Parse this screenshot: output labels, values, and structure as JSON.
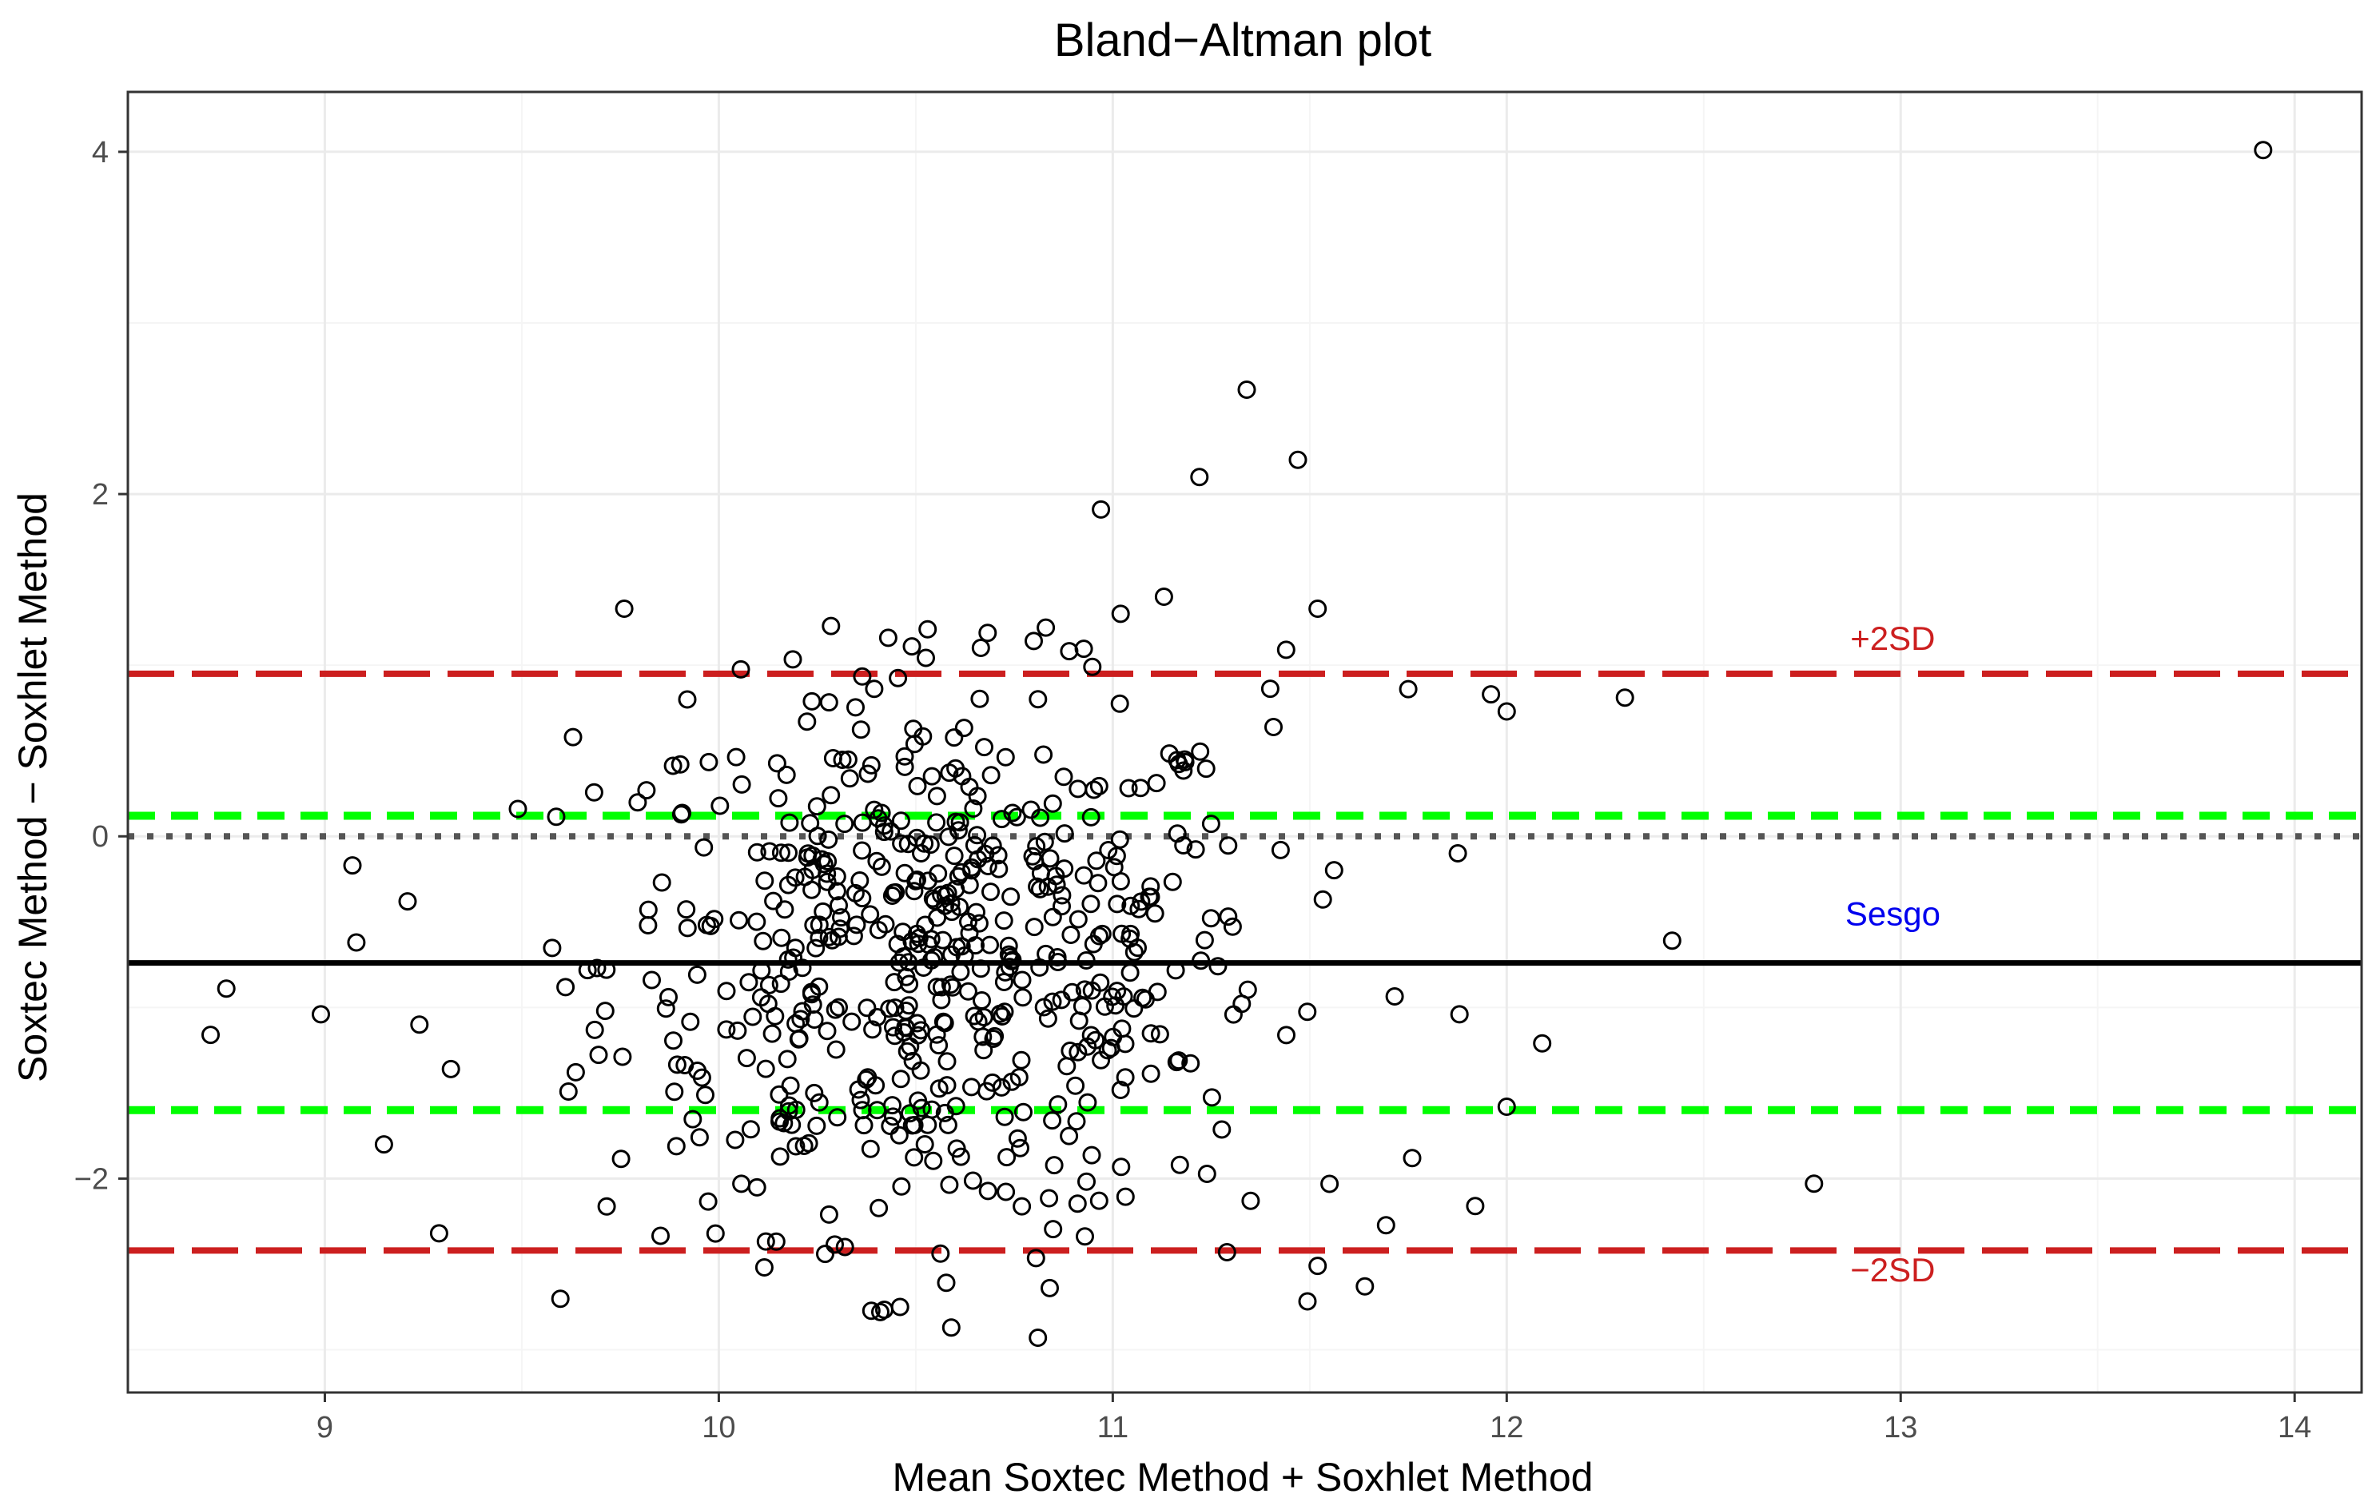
{
  "chart_data": {
    "type": "scatter",
    "title": "Bland−Altman plot",
    "xlabel": "Mean Soxtec Method + Soxhlet Method",
    "ylabel": "Soxtec Method − Soxhlet Method",
    "xlim": [
      8.5,
      14.17
    ],
    "ylim": [
      -3.25,
      4.35
    ],
    "x_ticks": [
      9,
      10,
      11,
      12,
      13,
      14
    ],
    "x_tick_labels": [
      "9",
      "10",
      "11",
      "12",
      "13",
      "14"
    ],
    "y_ticks": [
      -2,
      0,
      2,
      4
    ],
    "y_tick_labels": [
      "−2",
      "0",
      "2",
      "4"
    ],
    "grid": true,
    "reference_lines": [
      {
        "name": "plus-2sd",
        "y": 0.95,
        "style": "long-dash",
        "color": "#cc1f1f",
        "label": "+2SD",
        "label_x": 12.98,
        "label_y": 1.09
      },
      {
        "name": "upper-ci",
        "y": 0.12,
        "style": "dash",
        "color": "#00ff00"
      },
      {
        "name": "zero",
        "y": 0.0,
        "style": "dotted",
        "color": "#555555"
      },
      {
        "name": "bias",
        "y": -0.74,
        "style": "solid",
        "color": "#000000",
        "label": "Sesgo",
        "label_x": 12.98,
        "label_y": -0.52
      },
      {
        "name": "lower-ci",
        "y": -1.6,
        "style": "dash",
        "color": "#00ff00"
      },
      {
        "name": "minus-2sd",
        "y": -2.42,
        "style": "long-dash",
        "color": "#cc1f1f",
        "label": "−2SD",
        "label_x": 12.98,
        "label_y": -2.6
      }
    ],
    "highlighted_points": [
      [
        13.92,
        4.01
      ],
      [
        11.34,
        2.61
      ],
      [
        11.47,
        2.2
      ],
      [
        11.22,
        2.1
      ],
      [
        10.97,
        1.91
      ],
      [
        9.76,
        1.33
      ],
      [
        11.52,
        1.33
      ],
      [
        11.13,
        1.4
      ],
      [
        11.02,
        1.3
      ],
      [
        10.53,
        1.21
      ],
      [
        10.43,
        1.16
      ],
      [
        10.49,
        1.11
      ],
      [
        10.83,
        1.22
      ],
      [
        11.44,
        1.09
      ],
      [
        12.3,
        0.81
      ],
      [
        11.75,
        0.86
      ],
      [
        11.96,
        0.83
      ],
      [
        12.0,
        0.73
      ],
      [
        12.42,
        -0.61
      ],
      [
        12.09,
        -1.21
      ],
      [
        12.0,
        -1.58
      ],
      [
        12.78,
        -2.03
      ],
      [
        11.92,
        -2.16
      ],
      [
        11.64,
        -2.63
      ],
      [
        11.52,
        -2.51
      ],
      [
        10.81,
        -2.93
      ],
      [
        10.84,
        -2.64
      ],
      [
        10.59,
        -2.87
      ],
      [
        10.46,
        -2.75
      ],
      [
        10.41,
        -2.78
      ],
      [
        9.29,
        -2.32
      ],
      [
        8.71,
        -1.16
      ],
      [
        8.75,
        -0.89
      ],
      [
        8.99,
        -1.04
      ],
      [
        9.15,
        -1.8
      ],
      [
        9.07,
        -0.17
      ],
      [
        9.08,
        -0.62
      ],
      [
        9.21,
        -0.38
      ],
      [
        9.24,
        -1.1
      ],
      [
        9.32,
        -1.36
      ],
      [
        10.27,
        -2.44
      ],
      [
        10.28,
        -2.21
      ],
      [
        10.32,
        -2.4
      ],
      [
        11.29,
        -2.43
      ],
      [
        11.35,
        -2.13
      ],
      [
        9.63,
        0.58
      ],
      [
        9.49,
        0.16
      ],
      [
        9.92,
        0.8
      ],
      [
        11.76,
        -1.88
      ],
      [
        11.88,
        -1.04
      ]
    ],
    "points": [],
    "points_note": "approximately 600 scatter points clustered around x 9.5-11.9, y -3 to 1.4; generated with a seeded normal distribution"
  },
  "colors": {
    "background": "#ffffff",
    "grid_major": "#ebebeb",
    "grid_minor": "#f5f5f5",
    "panel_border": "#333333",
    "point_stroke": "#000000",
    "sesgo_label": "#0000ee",
    "sd_label": "#cc1f1f"
  }
}
